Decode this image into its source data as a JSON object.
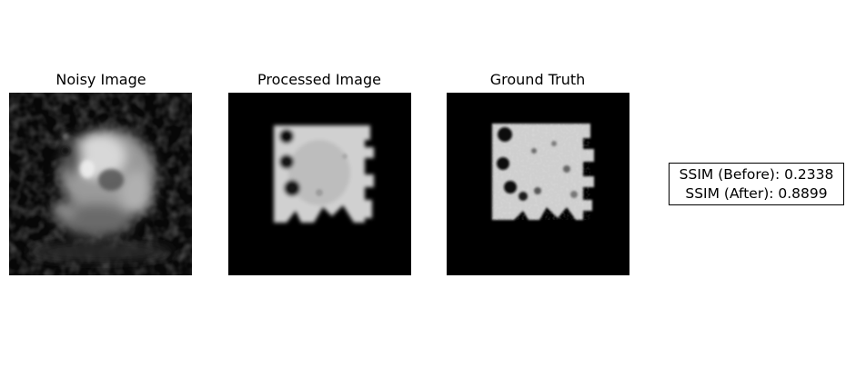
{
  "panels": [
    {
      "title": "Noisy Image",
      "image_icon": "noisy-image"
    },
    {
      "title": "Processed Image",
      "image_icon": "processed-image"
    },
    {
      "title": "Ground Truth",
      "image_icon": "ground-truth-image"
    }
  ],
  "metrics": {
    "ssim_before": "SSIM (Before): 0.2338",
    "ssim_after": "SSIM (After): 0.8899"
  }
}
